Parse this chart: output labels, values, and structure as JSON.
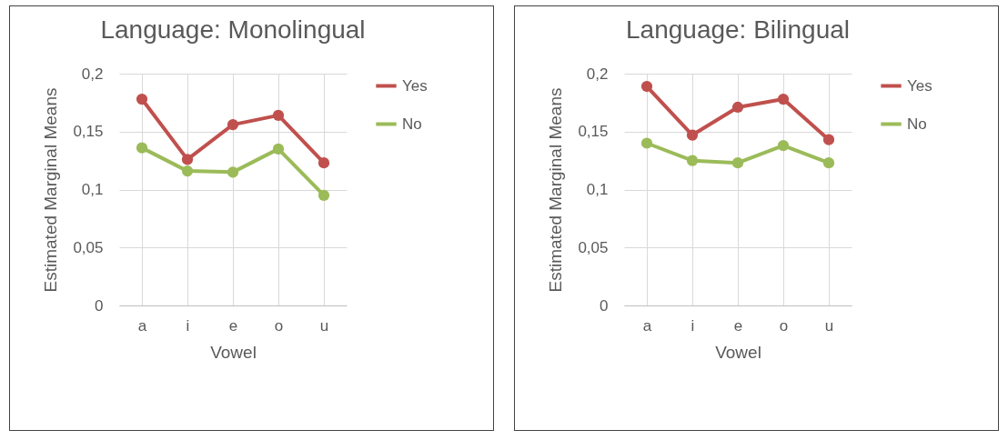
{
  "chart_data": [
    {
      "type": "line",
      "title": "Language: Monolingual",
      "xlabel": "Vowel",
      "ylabel": "Estimated Marginal Means",
      "categories": [
        "a",
        "i",
        "e",
        "o",
        "u"
      ],
      "series": [
        {
          "name": "Yes",
          "color": "#c0504d",
          "values": [
            0.178,
            0.126,
            0.156,
            0.164,
            0.123
          ]
        },
        {
          "name": "No",
          "color": "#9bbb59",
          "values": [
            0.136,
            0.116,
            0.115,
            0.135,
            0.095
          ]
        }
      ],
      "ylim": [
        0,
        0.2
      ],
      "yticks": [
        {
          "value": 0,
          "label": "0"
        },
        {
          "value": 0.05,
          "label": "0,05"
        },
        {
          "value": 0.1,
          "label": "0,1"
        },
        {
          "value": 0.15,
          "label": "0,15"
        },
        {
          "value": 0.2,
          "label": "0,2"
        }
      ],
      "grid": true,
      "legend": "right",
      "marker": "circle",
      "line_style": "solid"
    },
    {
      "type": "line",
      "title": "Language: Bilingual",
      "xlabel": "Vowel",
      "ylabel": "Estimated Marginal Means",
      "categories": [
        "a",
        "i",
        "e",
        "o",
        "u"
      ],
      "series": [
        {
          "name": "Yes",
          "color": "#c0504d",
          "values": [
            0.189,
            0.147,
            0.171,
            0.178,
            0.143
          ]
        },
        {
          "name": "No",
          "color": "#9bbb59",
          "values": [
            0.14,
            0.125,
            0.123,
            0.138,
            0.123
          ]
        }
      ],
      "ylim": [
        0,
        0.2
      ],
      "yticks": [
        {
          "value": 0,
          "label": "0"
        },
        {
          "value": 0.05,
          "label": "0,05"
        },
        {
          "value": 0.1,
          "label": "0,1"
        },
        {
          "value": 0.15,
          "label": "0,15"
        },
        {
          "value": 0.2,
          "label": "0,2"
        }
      ],
      "grid": true,
      "legend": "right",
      "marker": "circle",
      "line_style": "solid"
    }
  ]
}
